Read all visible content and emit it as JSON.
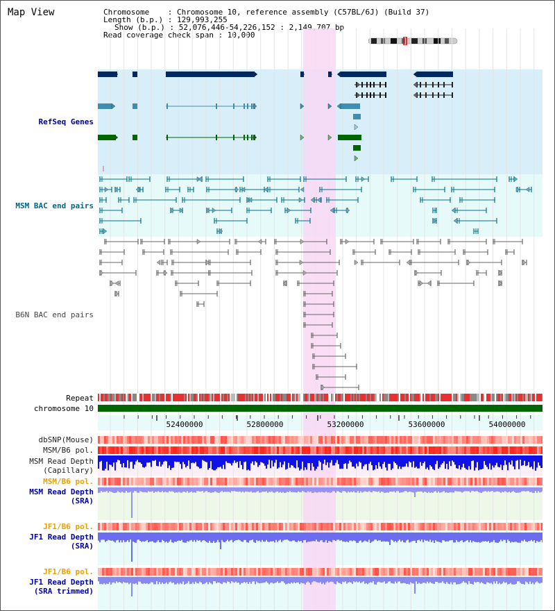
{
  "title": "Map View",
  "info": {
    "chromosome": "Chromosome    : Chromosome 10, reference assembly (C57BL/6J) (Build 37)",
    "length": "Length (b.p.) : 129,993,255",
    "show": "Show (b.p.) : 52,076,446-54,226,152 : 2,149,707 bp",
    "coverage": "Read coverage check span : 10,000"
  },
  "track_labels": {
    "refseq": "RefSeq Genes",
    "msm_bac": "MSM BAC end pairs",
    "b6n_bac": "B6N BAC end pairs",
    "repeat": "Repeat",
    "chromosome": "chromosome 10",
    "dbsnp": "dbSNP(Mouse)",
    "msm_b6_pol_1": "MSM/B6 pol.",
    "msm_read_cap_1": "MSM Read Depth",
    "msm_read_cap_2": "(Capillary)",
    "msm_b6_pol_2": "MSM/B6 pol.",
    "msm_read_sra_1": "MSM Read Depth",
    "msm_read_sra_2": "(SRA)",
    "jf1_b6_pol_1": "JF1/B6 pol.",
    "jf1_read_sra_1": "JF1 Read Depth",
    "jf1_read_sra_2": "(SRA)",
    "jf1_b6_pol_2": "JF1/B6 pol.",
    "jf1_trim_1": "JF1 Read Depth",
    "jf1_trim_2": "(SRA trimmed)"
  },
  "axis_ticks": [
    "52400000",
    "52800000",
    "53200000",
    "53600000",
    "54000000"
  ],
  "colors": {
    "refseq_label": "#000099",
    "msm_label": "#006688",
    "b6n_label": "#444444",
    "pol_orange": "#e8a000",
    "read_blue": "#0000aa",
    "highlight": "#f8d8f4",
    "refseq_bg": "#d8eef8",
    "msm_bg": "#e6fafa",
    "chrom_green": "#006600",
    "gene_dark": "#002860",
    "gene_mid": "#3f8db0",
    "gene_green": "#006600"
  },
  "icons": [
    "chromosome-ideogram-icon"
  ]
}
